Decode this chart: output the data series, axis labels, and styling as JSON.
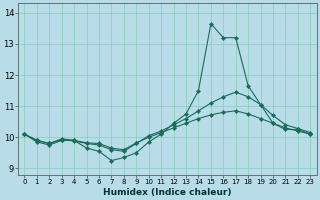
{
  "title": "",
  "xlabel": "Humidex (Indice chaleur)",
  "ylabel": "",
  "xlim": [
    -0.5,
    23.5
  ],
  "ylim": [
    8.8,
    14.3
  ],
  "yticks": [
    9,
    10,
    11,
    12,
    13,
    14
  ],
  "xticks": [
    0,
    1,
    2,
    3,
    4,
    5,
    6,
    7,
    8,
    9,
    10,
    11,
    12,
    13,
    14,
    15,
    16,
    17,
    18,
    19,
    20,
    21,
    22,
    23
  ],
  "bg_color": "#b8dde8",
  "grid_color": "#88ccbb",
  "line_color": "#1a6b5a",
  "series": {
    "line1_x": [
      0,
      1,
      2,
      3,
      4,
      5,
      6,
      7,
      8,
      9,
      10,
      11,
      12,
      13,
      14,
      15,
      16,
      17,
      18,
      19,
      20,
      21,
      22,
      23
    ],
    "line1_y": [
      10.1,
      9.85,
      9.75,
      9.9,
      9.9,
      9.65,
      9.55,
      9.25,
      9.35,
      9.5,
      9.85,
      10.1,
      10.45,
      10.75,
      11.5,
      13.65,
      13.2,
      13.2,
      11.65,
      11.05,
      10.45,
      10.25,
      10.25,
      10.1
    ],
    "line2_x": [
      0,
      1,
      2,
      3,
      4,
      5,
      6,
      7,
      8,
      9,
      10,
      11,
      12,
      13,
      14,
      15,
      16,
      17,
      18,
      19,
      20,
      21,
      22,
      23
    ],
    "line2_y": [
      10.1,
      9.9,
      9.8,
      9.92,
      9.88,
      9.8,
      9.75,
      9.6,
      9.55,
      9.8,
      10.05,
      10.2,
      10.4,
      10.6,
      10.85,
      11.1,
      11.3,
      11.45,
      11.3,
      11.05,
      10.7,
      10.4,
      10.28,
      10.15
    ],
    "line3_x": [
      0,
      1,
      2,
      3,
      4,
      5,
      6,
      7,
      8,
      9,
      10,
      11,
      12,
      13,
      14,
      15,
      16,
      17,
      18,
      19,
      20,
      21,
      22,
      23
    ],
    "line3_y": [
      10.1,
      9.9,
      9.8,
      9.95,
      9.9,
      9.82,
      9.8,
      9.65,
      9.6,
      9.82,
      10.0,
      10.15,
      10.3,
      10.45,
      10.6,
      10.72,
      10.8,
      10.85,
      10.75,
      10.6,
      10.45,
      10.3,
      10.2,
      10.1
    ]
  }
}
